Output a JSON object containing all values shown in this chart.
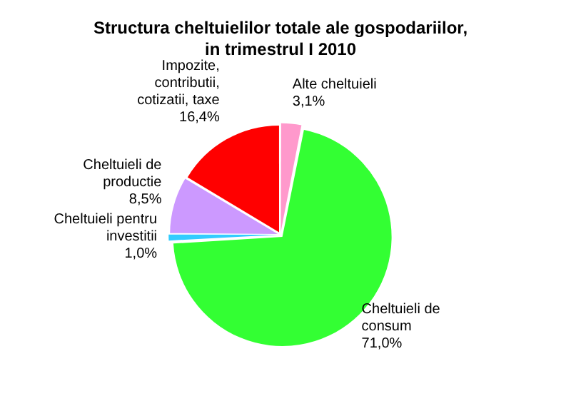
{
  "chart_data": {
    "type": "pie",
    "title": "Structura cheltuielilor totale ale gospodariilor, in trimestrul I 2010",
    "categories": [
      "Alte cheltuieli",
      "Cheltuieli de consum",
      "Cheltuieli pentru investitii",
      "Cheltuieli de productie",
      "Impozite, contributii, cotizatii, taxe"
    ],
    "values": [
      3.1,
      71.0,
      1.0,
      8.5,
      16.4
    ],
    "value_labels": [
      "3,1%",
      "71,0%",
      "1,0%",
      "8,5%",
      "16,4%"
    ],
    "colors": [
      "#ff99cc",
      "#33ff33",
      "#33ccff",
      "#cc99ff",
      "#ff0000"
    ],
    "legend": false
  }
}
